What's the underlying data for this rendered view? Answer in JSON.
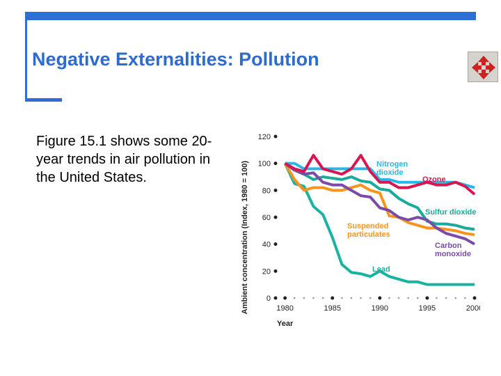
{
  "slide": {
    "title": "Negative Externalities: Pollution",
    "body": "Figure 15.1 shows some 20-year trends in air pollution in the United States.",
    "accent_color": "#2f6fd2",
    "title_color": "#2e6bcf"
  },
  "nav": {
    "icon": "four-way-arrows-icon",
    "icon_color": "#d02020"
  },
  "chart_data": {
    "type": "line",
    "xlabel": "Year",
    "ylabel": "Ambient concentration (Index, 1980 = 100)",
    "xlim": [
      1979,
      2000
    ],
    "ylim": [
      0,
      120
    ],
    "x_ticks": [
      1980,
      1985,
      1990,
      1995,
      2000
    ],
    "y_ticks": [
      0,
      20,
      40,
      60,
      80,
      100,
      120
    ],
    "x": [
      1980,
      1981,
      1982,
      1983,
      1984,
      1985,
      1986,
      1987,
      1988,
      1989,
      1990,
      1991,
      1992,
      1993,
      1994,
      1995,
      1996,
      1997,
      1998,
      1999,
      2000
    ],
    "series": [
      {
        "name": "Nitrogen dioxide",
        "color": "#29b6e8",
        "values": [
          100,
          100,
          96,
          96,
          96,
          96,
          96,
          96,
          96,
          96,
          88,
          88,
          86,
          86,
          86,
          86,
          86,
          86,
          86,
          84,
          82
        ]
      },
      {
        "name": "Ozone",
        "color": "#d9174f",
        "values": [
          100,
          96,
          94,
          106,
          96,
          94,
          92,
          96,
          106,
          94,
          86,
          86,
          82,
          82,
          84,
          86,
          84,
          84,
          86,
          83,
          77
        ]
      },
      {
        "name": "Sulfur dioxide",
        "color": "#1aaa9a",
        "values": [
          100,
          95,
          92,
          88,
          90,
          89,
          88,
          90,
          87,
          86,
          81,
          80,
          74,
          70,
          67,
          57,
          55,
          55,
          54,
          52,
          51
        ]
      },
      {
        "name": "Suspended particulates",
        "color": "#f5951f",
        "values": [
          100,
          88,
          80,
          82,
          82,
          80,
          80,
          82,
          84,
          80,
          78,
          61,
          60,
          56,
          54,
          52,
          52,
          51,
          50,
          48,
          47
        ]
      },
      {
        "name": "Carbon monoxide",
        "color": "#7b4aa8",
        "values": [
          100,
          95,
          92,
          93,
          86,
          84,
          84,
          80,
          76,
          75,
          67,
          65,
          60,
          58,
          60,
          58,
          52,
          48,
          46,
          44,
          40
        ]
      },
      {
        "name": "Lead",
        "color": "#19b3a1",
        "values": [
          100,
          85,
          83,
          68,
          62,
          45,
          25,
          19,
          18,
          16,
          20,
          16,
          14,
          12,
          12,
          10,
          10,
          10,
          10,
          10,
          10
        ]
      }
    ]
  }
}
